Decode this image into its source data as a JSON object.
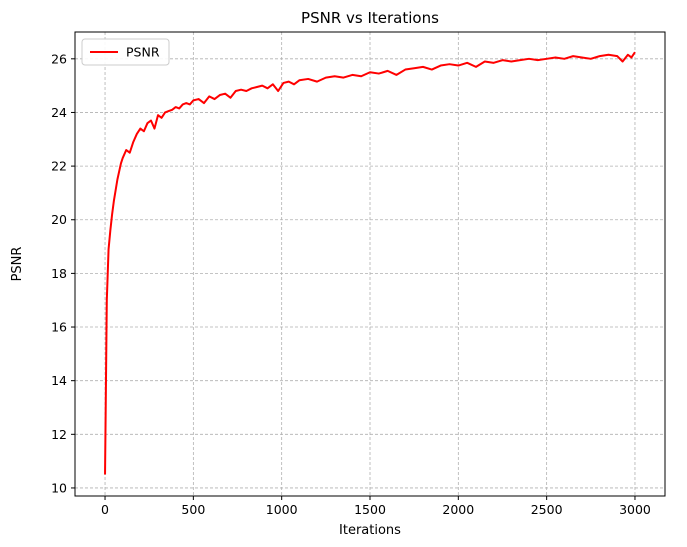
{
  "chart_data": {
    "type": "line",
    "title": "PSNR vs Iterations",
    "xlabel": "Iterations",
    "ylabel": "PSNR",
    "xlim": [
      -170,
      3170
    ],
    "ylim": [
      9.7,
      27.0
    ],
    "xticks": [
      0,
      500,
      1000,
      1500,
      2000,
      2500,
      3000
    ],
    "xtick_labels": [
      "0",
      "500",
      "1000",
      "1500",
      "2000",
      "2500",
      "3000"
    ],
    "yticks": [
      10,
      12,
      14,
      16,
      18,
      20,
      22,
      24,
      26
    ],
    "ytick_labels": [
      "10",
      "12",
      "14",
      "16",
      "18",
      "20",
      "22",
      "24",
      "26"
    ],
    "grid": true,
    "legend_position": "top-left",
    "series": [
      {
        "name": "PSNR",
        "color": "#ff0000",
        "x": [
          0,
          10,
          20,
          30,
          40,
          50,
          60,
          70,
          80,
          90,
          100,
          120,
          140,
          160,
          180,
          200,
          220,
          240,
          260,
          280,
          300,
          320,
          340,
          360,
          380,
          400,
          420,
          440,
          460,
          480,
          500,
          530,
          560,
          590,
          620,
          650,
          680,
          710,
          740,
          770,
          800,
          830,
          860,
          890,
          920,
          950,
          980,
          1010,
          1040,
          1070,
          1100,
          1150,
          1200,
          1250,
          1300,
          1350,
          1400,
          1450,
          1500,
          1550,
          1600,
          1650,
          1700,
          1750,
          1800,
          1850,
          1900,
          1950,
          2000,
          2050,
          2100,
          2150,
          2200,
          2250,
          2300,
          2350,
          2400,
          2450,
          2500,
          2550,
          2600,
          2650,
          2700,
          2750,
          2800,
          2850,
          2900,
          2930,
          2960,
          2980,
          3000
        ],
        "y": [
          10.5,
          17.0,
          18.9,
          19.6,
          20.2,
          20.7,
          21.1,
          21.5,
          21.8,
          22.1,
          22.3,
          22.6,
          22.5,
          22.9,
          23.2,
          23.4,
          23.3,
          23.6,
          23.7,
          23.4,
          23.9,
          23.8,
          24.0,
          24.05,
          24.1,
          24.2,
          24.15,
          24.3,
          24.35,
          24.3,
          24.45,
          24.5,
          24.35,
          24.6,
          24.5,
          24.65,
          24.7,
          24.55,
          24.8,
          24.85,
          24.8,
          24.9,
          24.95,
          25.0,
          24.9,
          25.05,
          24.8,
          25.1,
          25.15,
          25.05,
          25.2,
          25.25,
          25.15,
          25.3,
          25.35,
          25.3,
          25.4,
          25.35,
          25.5,
          25.45,
          25.55,
          25.4,
          25.6,
          25.65,
          25.7,
          25.6,
          25.75,
          25.8,
          25.75,
          25.85,
          25.7,
          25.9,
          25.85,
          25.95,
          25.9,
          25.95,
          26.0,
          25.95,
          26.0,
          26.05,
          26.0,
          26.1,
          26.05,
          26.0,
          26.1,
          26.15,
          26.1,
          25.9,
          26.15,
          26.05,
          26.25
        ]
      }
    ]
  }
}
